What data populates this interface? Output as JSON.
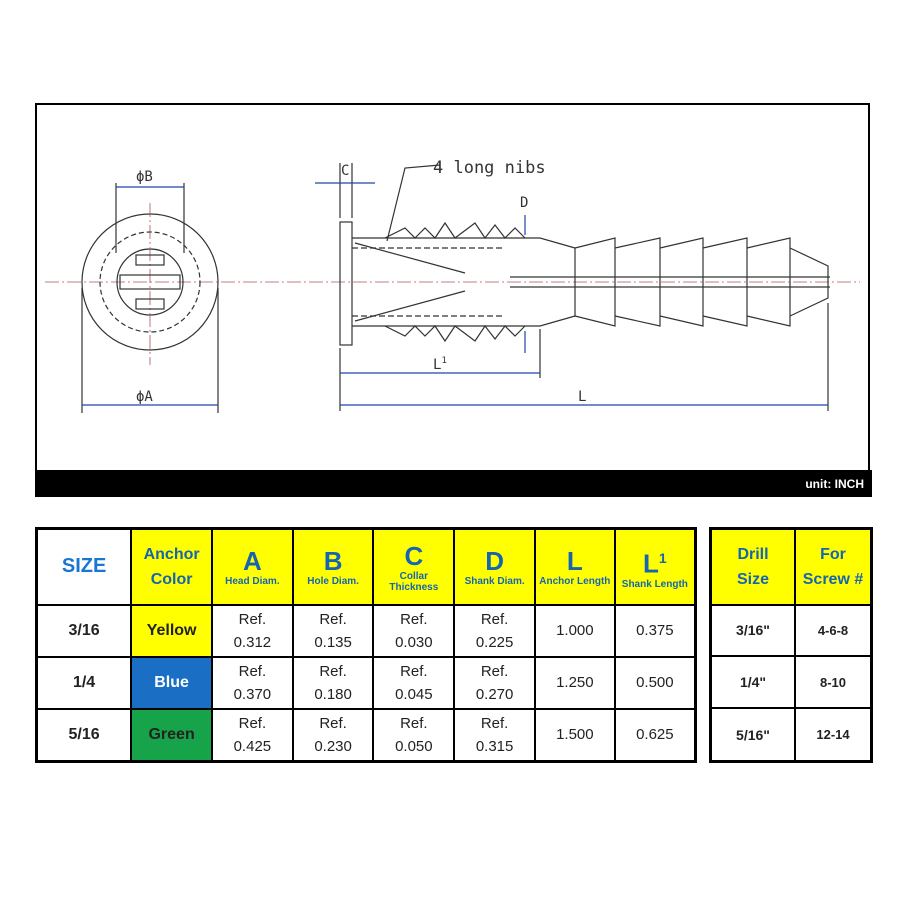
{
  "drawing": {
    "labels": {
      "phi_b": "ϕB",
      "phi_a": "ϕA",
      "c": "C",
      "nibs": "4 long nibs",
      "d": "D",
      "l1": "L",
      "l1_sup": "1",
      "l": "L"
    },
    "unit": "unit: INCH"
  },
  "colors": {
    "yellow": "#ffff00",
    "blue": "#1a6fc4",
    "green": "#16a34a",
    "header_text": "#1565b0"
  },
  "spec_table": {
    "headers": [
      {
        "big": "SIZE"
      },
      {
        "line1": "Anchor",
        "line2": "Color"
      },
      {
        "big": "A",
        "sub": "Head Diam."
      },
      {
        "big": "B",
        "sub": "Hole Diam."
      },
      {
        "big": "C",
        "sub": "Collar Thickness"
      },
      {
        "big": "D",
        "sub": "Shank Diam."
      },
      {
        "big": "L",
        "sub": "Anchor Length"
      },
      {
        "big": "L",
        "sup": "1",
        "sub": "Shank Length"
      }
    ],
    "rows": [
      {
        "size": "3/16",
        "color": "Yellow",
        "a_ref": "Ref.",
        "a": "0.312",
        "b_ref": "Ref.",
        "b": "0.135",
        "c_ref": "Ref.",
        "c": "0.030",
        "d_ref": "Ref.",
        "d": "0.225",
        "l": "1.000",
        "l1": "0.375"
      },
      {
        "size": "1/4",
        "color": "Blue",
        "a_ref": "Ref.",
        "a": "0.370",
        "b_ref": "Ref.",
        "b": "0.180",
        "c_ref": "Ref.",
        "c": "0.045",
        "d_ref": "Ref.",
        "d": "0.270",
        "l": "1.250",
        "l1": "0.500"
      },
      {
        "size": "5/16",
        "color": "Green",
        "a_ref": "Ref.",
        "a": "0.425",
        "b_ref": "Ref.",
        "b": "0.230",
        "c_ref": "Ref.",
        "c": "0.050",
        "d_ref": "Ref.",
        "d": "0.315",
        "l": "1.500",
        "l1": "0.625"
      }
    ]
  },
  "drill_table": {
    "headers": [
      {
        "line1": "Drill",
        "line2": "Size"
      },
      {
        "line1": "For",
        "line2": "Screw #"
      }
    ],
    "rows": [
      {
        "drill": "3/16\"",
        "screw": "4-6-8"
      },
      {
        "drill": "1/4\"",
        "screw": "8-10"
      },
      {
        "drill": "5/16\"",
        "screw": "12-14"
      }
    ]
  }
}
